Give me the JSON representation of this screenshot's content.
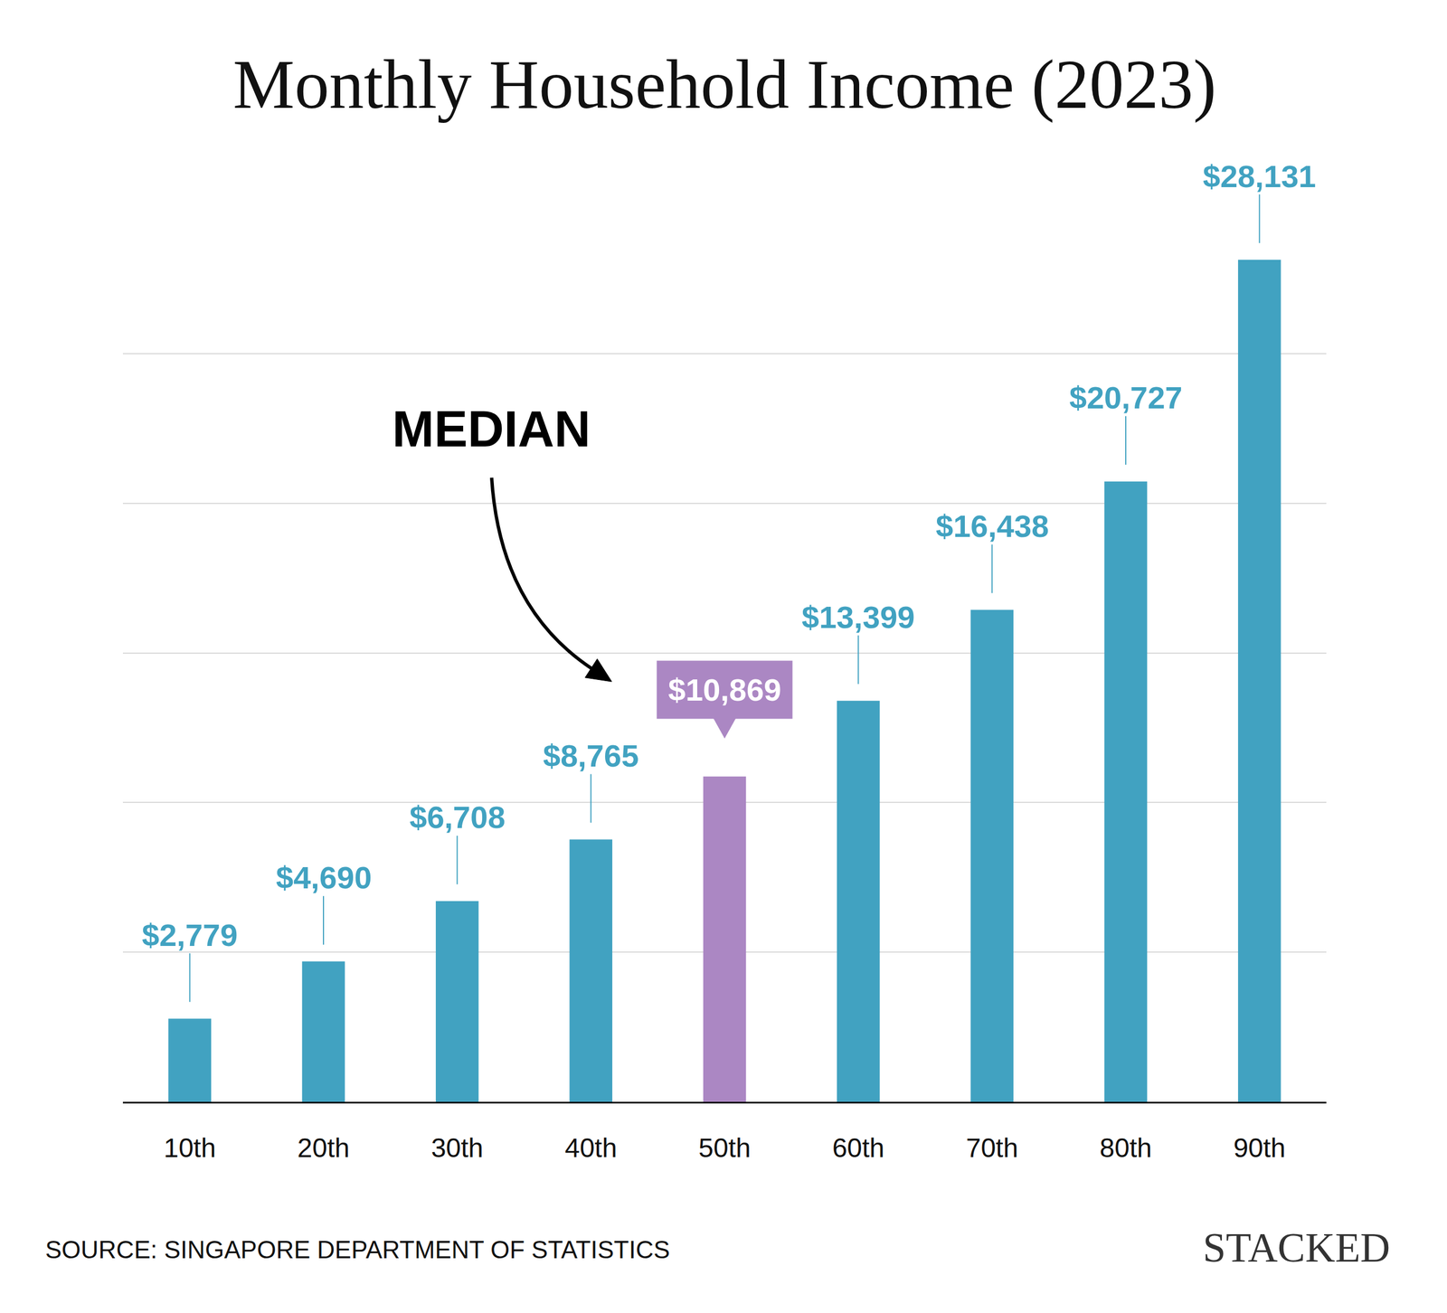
{
  "chart_data": {
    "type": "bar",
    "title": "Monthly Household Income (2023)",
    "categories": [
      "10th",
      "20th",
      "30th",
      "40th",
      "50th",
      "60th",
      "70th",
      "80th",
      "90th"
    ],
    "values": [
      2779,
      4690,
      6708,
      8765,
      10869,
      13399,
      16438,
      20727,
      28131
    ],
    "value_labels": [
      "$2,779",
      "$4,690",
      "$6,708",
      "$8,765",
      "$10,869",
      "$13,399",
      "$16,438",
      "$20,727",
      "$28,131"
    ],
    "colors": [
      "#41a2c1",
      "#41a2c1",
      "#41a2c1",
      "#41a2c1",
      "#ab87c3",
      "#41a2c1",
      "#41a2c1",
      "#41a2c1",
      "#41a2c1"
    ],
    "ylim": [
      0,
      30000
    ],
    "yticks": [
      0,
      5000,
      10000,
      15000,
      20000,
      25000,
      30000
    ],
    "grid": true,
    "tick_labels": "x",
    "data_labels": true,
    "annotations": [
      "MEDIAN"
    ],
    "source": "SOURCE: SINGAPORE DEPARTMENT OF STATISTICS",
    "brand": "STACKED"
  }
}
